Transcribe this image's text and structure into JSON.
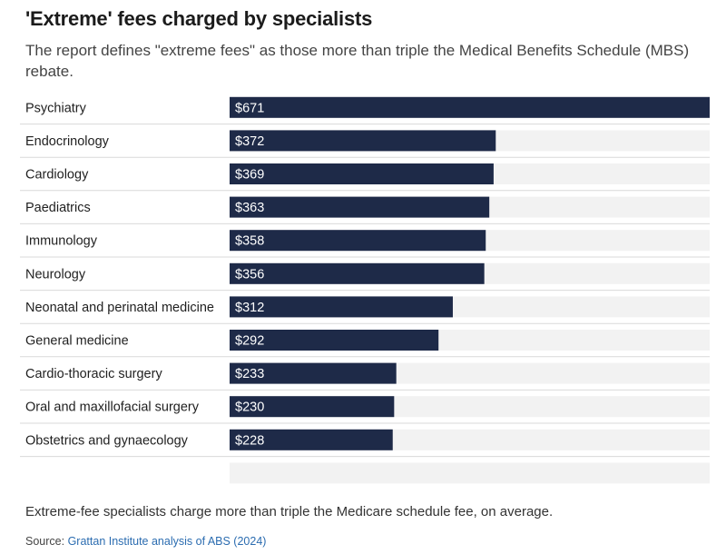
{
  "title": "'Extreme' fees charged by specialists",
  "subtitle": "The report defines \"extreme fees\" as those more than triple the Medical Benefits Schedule (MBS) rebate.",
  "note": "Extreme-fee specialists charge more than triple the Medicare schedule fee, on average.",
  "source": {
    "label": "Source:",
    "link_text": "Grattan Institute analysis of ABS (2024)"
  },
  "colors": {
    "bar": "#1e2a48",
    "track": "#f2f2f2",
    "divider": "#d9d9d9"
  },
  "chart_data": {
    "type": "bar",
    "orientation": "horizontal",
    "categories": [
      "Psychiatry",
      "Endocrinology",
      "Cardiology",
      "Paediatrics",
      "Immunology",
      "Neurology",
      "Neonatal and perinatal medicine",
      "General medicine",
      "Cardio-thoracic surgery",
      "Oral and maxillofacial surgery",
      "Obstetrics and gynaecology"
    ],
    "values": [
      671,
      372,
      369,
      363,
      358,
      356,
      312,
      292,
      233,
      230,
      228
    ],
    "value_labels": [
      "$671",
      "$372",
      "$369",
      "$363",
      "$358",
      "$356",
      "$312",
      "$292",
      "$233",
      "$230",
      "$228"
    ],
    "xlim": [
      0,
      671
    ],
    "grid": false,
    "legend": "none"
  }
}
